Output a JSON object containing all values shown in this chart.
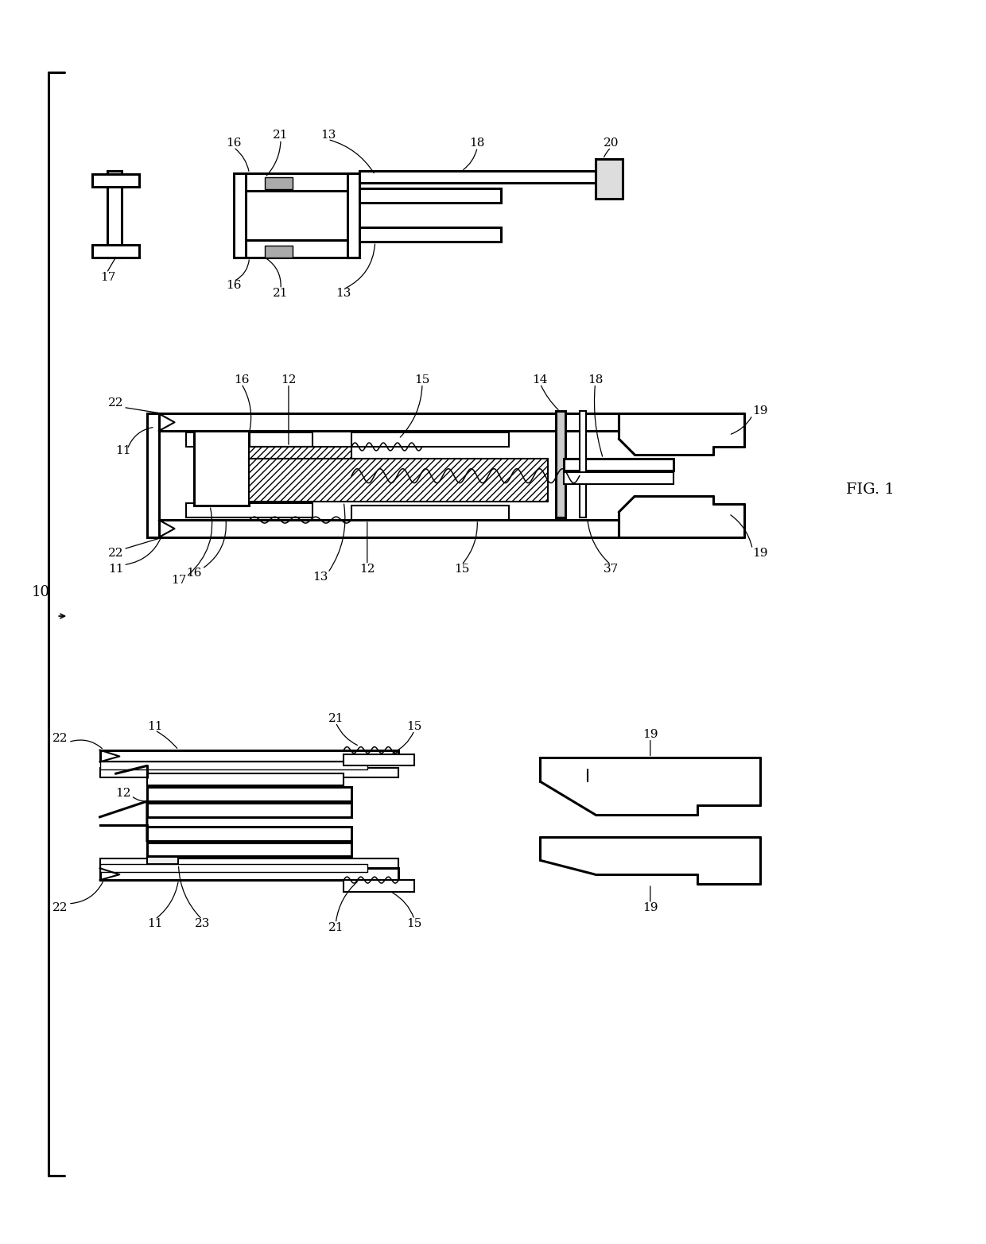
{
  "background_color": "#ffffff",
  "line_color": "#000000",
  "fig_label": "FIG. 1",
  "lw": 1.5,
  "lw_thick": 2.2,
  "lw_thin": 1.0,
  "fontsize": 11,
  "fontsize_large": 13
}
